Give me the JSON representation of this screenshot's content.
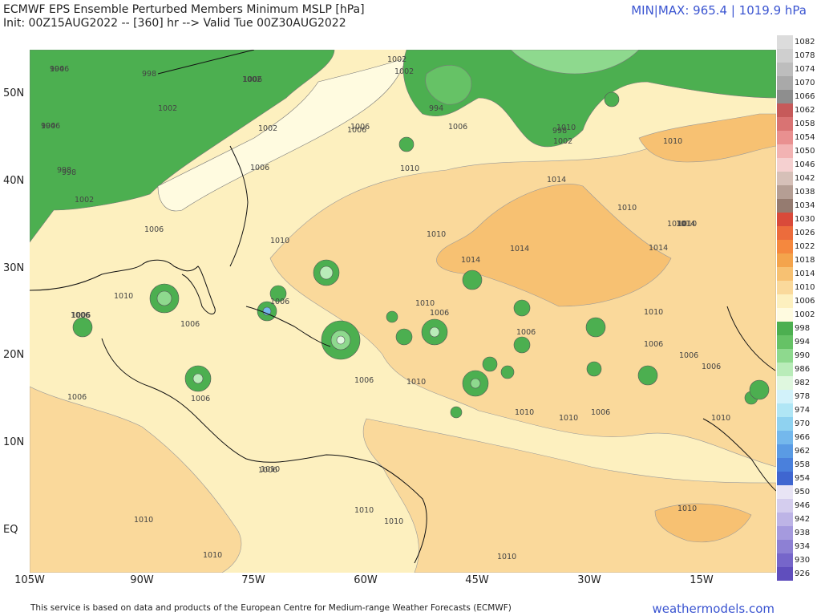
{
  "header": {
    "title_line1": "ECMWF EPS Ensemble Perturbed Members Minimum MSLP [hPa]",
    "title_line2": "Init: 00Z15AUG2022 -- [360] hr --> Valid Tue 00Z30AUG2022",
    "minmax": "MIN|MAX: 965.4 | 1019.9 hPa"
  },
  "footer": {
    "credit": "This service is based on data and products of the European Centre for Medium-range Weather Forecasts (ECMWF)",
    "brand": "weathermodels.com"
  },
  "axes": {
    "lat_labels": [
      "50N",
      "40N",
      "30N",
      "20N",
      "10N",
      "EQ"
    ],
    "lon_labels": [
      "105W",
      "90W",
      "75W",
      "60W",
      "45W",
      "30W",
      "15W"
    ]
  },
  "colorbar": [
    {
      "label": "1082",
      "color": "#dcdcdc"
    },
    {
      "label": "1078",
      "color": "#cfcfcf"
    },
    {
      "label": "1074",
      "color": "#bdbdbd"
    },
    {
      "label": "1070",
      "color": "#a9a9a9"
    },
    {
      "label": "1066",
      "color": "#8e8e8e"
    },
    {
      "label": "1062",
      "color": "#c65a5a"
    },
    {
      "label": "1058",
      "color": "#d97373"
    },
    {
      "label": "1054",
      "color": "#e99090"
    },
    {
      "label": "1050",
      "color": "#f2b3b3"
    },
    {
      "label": "1046",
      "color": "#f5d0d0"
    },
    {
      "label": "1042",
      "color": "#d6c0b8"
    },
    {
      "label": "1038",
      "color": "#b59e94"
    },
    {
      "label": "1034",
      "color": "#957b70"
    },
    {
      "label": "1030",
      "color": "#d94a3a"
    },
    {
      "label": "1026",
      "color": "#ec6c3c"
    },
    {
      "label": "1022",
      "color": "#f5883e"
    },
    {
      "label": "1018",
      "color": "#f4a44c"
    },
    {
      "label": "1014",
      "color": "#f7c172"
    },
    {
      "label": "1010",
      "color": "#fad99b"
    },
    {
      "label": "1006",
      "color": "#fdf0bf"
    },
    {
      "label": "1002",
      "color": "#fffbe0"
    },
    {
      "label": "998",
      "color": "#4caf50"
    },
    {
      "label": "994",
      "color": "#66c266"
    },
    {
      "label": "990",
      "color": "#8ed98e"
    },
    {
      "label": "986",
      "color": "#b9ecb9"
    },
    {
      "label": "982",
      "color": "#dff7df"
    },
    {
      "label": "978",
      "color": "#d2f2fa"
    },
    {
      "label": "974",
      "color": "#b0e6f5"
    },
    {
      "label": "970",
      "color": "#8fd2f0"
    },
    {
      "label": "966",
      "color": "#74b8ec"
    },
    {
      "label": "962",
      "color": "#5a9be4"
    },
    {
      "label": "958",
      "color": "#4a80dc"
    },
    {
      "label": "954",
      "color": "#3f66d0"
    },
    {
      "label": "950",
      "color": "#e8e4f5"
    },
    {
      "label": "946",
      "color": "#d4cdee"
    },
    {
      "label": "942",
      "color": "#bdb4e6"
    },
    {
      "label": "938",
      "color": "#a59ade"
    },
    {
      "label": "934",
      "color": "#8d80d4"
    },
    {
      "label": "930",
      "color": "#7666ca"
    },
    {
      "label": "926",
      "color": "#604ebd"
    }
  ],
  "contour_labels": [
    "994",
    "998",
    "1002",
    "994",
    "998",
    "1002",
    "994",
    "1006",
    "998",
    "1002",
    "998",
    "1002",
    "1006",
    "1010",
    "1006",
    "1002",
    "1006",
    "1006",
    "1010",
    "1014",
    "1014",
    "1014",
    "1014",
    "1010",
    "1010",
    "1010",
    "1010",
    "1010",
    "1006",
    "1006",
    "1006",
    "1006",
    "1006",
    "1006",
    "1006",
    "1010",
    "1010",
    "1010",
    "1010",
    "1010",
    "1006",
    "1006",
    "1006",
    "1006",
    "1010",
    "1006",
    "1006",
    "1010",
    "1010",
    "1010",
    "1010",
    "1010",
    "1010",
    "1010",
    "1014",
    "1010",
    "1010",
    "1002",
    "1006",
    "1006",
    "1006",
    "1002",
    "1006"
  ]
}
